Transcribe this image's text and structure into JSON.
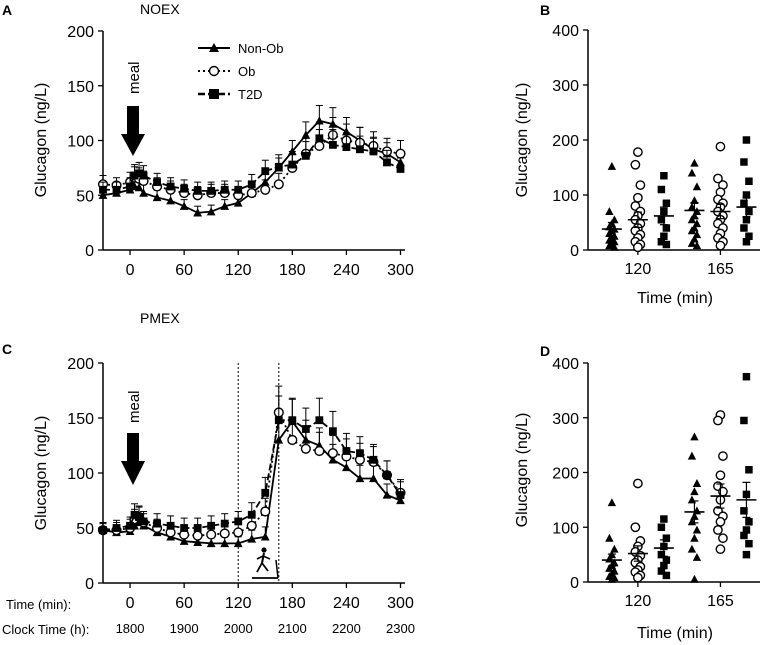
{
  "chart_data": [
    {
      "panel": "A",
      "title": "NOEX",
      "type": "line",
      "xlabel": "",
      "ylabel": "Glucagon (ng/L)",
      "xlim": [
        -30,
        305
      ],
      "ylim": [
        0,
        200
      ],
      "xticks": [
        0,
        60,
        120,
        180,
        240,
        300
      ],
      "yticks": [
        0,
        50,
        100,
        150,
        200
      ],
      "annotation": "meal",
      "annotation_x": 0,
      "legend": [
        "Non-Ob",
        "Ob",
        "T2D"
      ],
      "legend_position": "top-center",
      "series": [
        {
          "name": "Non-Ob",
          "marker": "triangle",
          "dash": "solid",
          "x": [
            -30,
            -15,
            0,
            5,
            10,
            15,
            30,
            45,
            60,
            75,
            90,
            105,
            120,
            135,
            150,
            165,
            180,
            195,
            210,
            225,
            240,
            255,
            270,
            285,
            300
          ],
          "y": [
            50,
            52,
            55,
            58,
            57,
            52,
            48,
            45,
            40,
            34,
            35,
            40,
            43,
            52,
            62,
            75,
            90,
            105,
            118,
            115,
            108,
            100,
            92,
            88,
            80
          ],
          "err": [
            6,
            6,
            7,
            8,
            8,
            8,
            7,
            7,
            6,
            6,
            6,
            6,
            6,
            7,
            8,
            9,
            10,
            12,
            14,
            15,
            13,
            12,
            11,
            10,
            9
          ]
        },
        {
          "name": "Ob",
          "marker": "circle-open",
          "dash": "dotted",
          "x": [
            -30,
            -15,
            0,
            5,
            10,
            15,
            30,
            45,
            60,
            75,
            90,
            105,
            120,
            135,
            150,
            165,
            180,
            195,
            210,
            225,
            240,
            255,
            270,
            285,
            300
          ],
          "y": [
            60,
            59,
            62,
            66,
            65,
            63,
            58,
            55,
            52,
            50,
            52,
            52,
            50,
            52,
            55,
            60,
            75,
            88,
            95,
            105,
            100,
            98,
            95,
            90,
            88
          ],
          "err": [
            8,
            7,
            9,
            10,
            10,
            9,
            8,
            8,
            8,
            8,
            8,
            8,
            8,
            8,
            9,
            10,
            12,
            14,
            15,
            16,
            15,
            14,
            13,
            12,
            12
          ]
        },
        {
          "name": "T2D",
          "marker": "square",
          "dash": "dashed",
          "x": [
            -30,
            -15,
            0,
            5,
            10,
            15,
            30,
            45,
            60,
            75,
            90,
            105,
            120,
            135,
            150,
            165,
            180,
            195,
            210,
            225,
            240,
            255,
            270,
            285,
            300
          ],
          "y": [
            55,
            55,
            58,
            68,
            70,
            68,
            62,
            58,
            56,
            54,
            54,
            55,
            55,
            60,
            72,
            76,
            78,
            86,
            102,
            96,
            94,
            92,
            90,
            80,
            74
          ],
          "err": [
            7,
            7,
            8,
            10,
            10,
            9,
            8,
            8,
            8,
            8,
            8,
            8,
            8,
            9,
            10,
            11,
            12,
            13,
            15,
            14,
            13,
            12,
            12,
            11,
            10
          ]
        }
      ]
    },
    {
      "panel": "B",
      "type": "scatter",
      "xlabel": "Time (min)",
      "ylabel": "Glucagon (ng/L)",
      "ylim": [
        0,
        400
      ],
      "yticks": [
        0,
        100,
        200,
        300,
        400
      ],
      "categories": [
        "120",
        "165"
      ],
      "series": [
        {
          "name": "Non-Ob",
          "marker": "triangle",
          "values": [
            [
              152,
              70,
              55,
              48,
              42,
              38,
              35,
              30,
              25,
              22,
              18,
              15,
              10,
              8,
              5
            ],
            [
              158,
              140,
              115,
              90,
              78,
              70,
              62,
              55,
              48,
              40,
              35,
              28,
              20,
              12,
              8
            ]
          ],
          "means": [
            38,
            72
          ],
          "sem": [
            12,
            14
          ]
        },
        {
          "name": "Ob",
          "marker": "circle-open",
          "values": [
            [
              178,
              155,
              118,
              95,
              80,
              70,
              62,
              55,
              48,
              40,
              35,
              28,
              22,
              15,
              10,
              5
            ],
            [
              188,
              130,
              118,
              105,
              92,
              85,
              78,
              70,
              62,
              55,
              48,
              40,
              30,
              22,
              15,
              8
            ]
          ],
          "means": [
            55,
            70
          ],
          "sem": [
            14,
            13
          ]
        },
        {
          "name": "T2D",
          "marker": "square",
          "values": [
            [
              135,
              110,
              85,
              70,
              55,
              40,
              25,
              15,
              10
            ],
            [
              200,
              160,
              125,
              100,
              85,
              70,
              55,
              40,
              25,
              15
            ]
          ],
          "means": [
            62,
            78
          ],
          "sem": [
            16,
            18
          ]
        }
      ]
    },
    {
      "panel": "C",
      "title": "PMEX",
      "type": "line",
      "xlabel": "Time (min):",
      "secondary_xlabel": "Clock Time (h):",
      "ylabel": "Glucagon (ng/L)",
      "xlim": [
        -30,
        305
      ],
      "ylim": [
        0,
        200
      ],
      "xticks": [
        0,
        60,
        120,
        180,
        240,
        300
      ],
      "clock_ticks": [
        "1800",
        "1900",
        "2000",
        "2100",
        "2200",
        "2300"
      ],
      "yticks": [
        0,
        50,
        100,
        150,
        200
      ],
      "annotation": "meal",
      "annotation_x": 0,
      "exercise_window": [
        120,
        165
      ],
      "series": [
        {
          "name": "Non-Ob",
          "marker": "triangle",
          "dash": "solid",
          "x": [
            -30,
            -15,
            0,
            5,
            10,
            15,
            30,
            45,
            60,
            75,
            90,
            105,
            120,
            135,
            150,
            165,
            180,
            195,
            210,
            225,
            240,
            255,
            270,
            285,
            300
          ],
          "y": [
            48,
            46,
            47,
            52,
            55,
            52,
            46,
            42,
            38,
            37,
            36,
            36,
            36,
            40,
            42,
            130,
            147,
            130,
            125,
            112,
            105,
            95,
            95,
            80,
            75
          ],
          "err": [
            6,
            6,
            6,
            7,
            7,
            7,
            6,
            6,
            6,
            6,
            6,
            6,
            6,
            8,
            9,
            18,
            20,
            18,
            16,
            14,
            13,
            12,
            12,
            10,
            9
          ]
        },
        {
          "name": "Ob",
          "marker": "circle-open",
          "dash": "dotted",
          "x": [
            -30,
            -15,
            0,
            5,
            10,
            15,
            30,
            45,
            60,
            75,
            90,
            105,
            120,
            135,
            150,
            165,
            180,
            195,
            210,
            225,
            240,
            255,
            270,
            285,
            300
          ],
          "y": [
            48,
            48,
            50,
            58,
            60,
            55,
            50,
            46,
            44,
            43,
            44,
            45,
            46,
            52,
            65,
            155,
            130,
            122,
            120,
            118,
            115,
            112,
            110,
            98,
            82
          ],
          "err": [
            7,
            7,
            8,
            9,
            9,
            8,
            8,
            8,
            8,
            8,
            8,
            8,
            8,
            10,
            12,
            24,
            20,
            18,
            17,
            16,
            16,
            15,
            14,
            13,
            12
          ]
        },
        {
          "name": "T2D",
          "marker": "square",
          "dash": "dashed",
          "x": [
            -30,
            -15,
            0,
            5,
            10,
            15,
            30,
            45,
            60,
            75,
            90,
            105,
            120,
            135,
            150,
            165,
            180,
            195,
            210,
            225,
            240,
            255,
            270,
            285,
            300
          ],
          "y": [
            48,
            50,
            52,
            62,
            60,
            56,
            54,
            52,
            50,
            50,
            52,
            54,
            56,
            62,
            82,
            148,
            148,
            140,
            148,
            138,
            120,
            118,
            112,
            98,
            80
          ],
          "err": [
            7,
            7,
            8,
            10,
            10,
            9,
            9,
            9,
            9,
            9,
            9,
            9,
            9,
            11,
            14,
            22,
            20,
            19,
            20,
            18,
            16,
            15,
            14,
            13,
            12
          ]
        }
      ]
    },
    {
      "panel": "D",
      "type": "scatter",
      "xlabel": "Time (min)",
      "ylabel": "Glucagon (ng/L)",
      "ylim": [
        0,
        400
      ],
      "yticks": [
        0,
        100,
        200,
        300,
        400
      ],
      "categories": [
        "120",
        "165"
      ],
      "series": [
        {
          "name": "Non-Ob",
          "marker": "triangle",
          "values": [
            [
              145,
              80,
              60,
              50,
              42,
              35,
              30,
              25,
              20,
              15,
              10,
              8,
              5
            ],
            [
              265,
              230,
              180,
              165,
              150,
              130,
              120,
              110,
              95,
              80,
              60,
              45,
              5
            ]
          ],
          "means": [
            40,
            128
          ],
          "sem": [
            11,
            20
          ]
        },
        {
          "name": "Ob",
          "marker": "circle-open",
          "values": [
            [
              180,
              100,
              75,
              65,
              55,
              48,
              40,
              35,
              28,
              22,
              18,
              12,
              8
            ],
            [
              305,
              295,
              230,
              195,
              175,
              165,
              150,
              130,
              120,
              110,
              95,
              80,
              60
            ]
          ],
          "means": [
            52,
            157
          ],
          "sem": [
            14,
            22
          ]
        },
        {
          "name": "T2D",
          "marker": "square",
          "values": [
            [
              115,
              100,
              80,
              65,
              50,
              40,
              30,
              20,
              12
            ],
            [
              375,
              295,
              205,
              160,
              130,
              110,
              95,
              85,
              70,
              50
            ]
          ],
          "means": [
            62,
            150
          ],
          "sem": [
            15,
            32
          ]
        }
      ]
    }
  ],
  "panel_labels": {
    "A": "A",
    "B": "B",
    "C": "C",
    "D": "D"
  },
  "titles": {
    "noex": "NOEX",
    "pmex": "PMEX"
  },
  "axis_labels": {
    "a_ylabel": "Glucagon (ng/L)",
    "b_ylabel": "Glucagon (ng/L)",
    "b_xlabel": "Time (min)",
    "c_ylabel": "Glucagon (ng/L)",
    "c_xlabel_time": "Time (min):",
    "c_xlabel_clock": "Clock Time (h):",
    "d_ylabel": "Glucagon (ng/L)",
    "d_xlabel": "Time (min)"
  },
  "legend": {
    "non_ob": "Non-Ob",
    "ob": "Ob",
    "t2d": "T2D"
  },
  "meal_label": "meal"
}
